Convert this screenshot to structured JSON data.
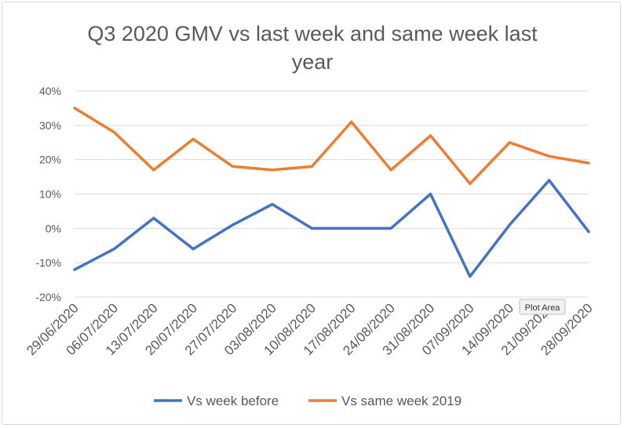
{
  "chart_data": {
    "type": "line",
    "title_lines": [
      "Q3 2020 GMV vs last week and same week last",
      "year"
    ],
    "categories": [
      "29/06/2020",
      "06/07/2020",
      "13/07/2020",
      "20/07/2020",
      "27/07/2020",
      "03/08/2020",
      "10/08/2020",
      "17/08/2020",
      "24/08/2020",
      "31/08/2020",
      "07/09/2020",
      "14/09/2020",
      "21/09/2020",
      "28/09/2020"
    ],
    "series": [
      {
        "name": "Vs week before",
        "color": "#4472c4",
        "values": [
          -12,
          -6,
          3,
          -6,
          1,
          7,
          0,
          0,
          0,
          10,
          -14,
          1,
          14,
          -1
        ]
      },
      {
        "name": "Vs same week 2019",
        "color": "#ed7d31",
        "values": [
          35,
          28,
          17,
          26,
          18,
          17,
          18,
          31,
          17,
          27,
          13,
          25,
          21,
          19
        ]
      }
    ],
    "ylim": [
      -20,
      40
    ],
    "yticks": [
      40,
      30,
      20,
      10,
      0,
      -10,
      -20
    ],
    "ytick_labels": [
      "40%",
      "30%",
      "20%",
      "10%",
      "0%",
      "-10%",
      "-20%"
    ],
    "grid": true,
    "legend_position": "bottom",
    "tooltip": "Plot Area"
  }
}
